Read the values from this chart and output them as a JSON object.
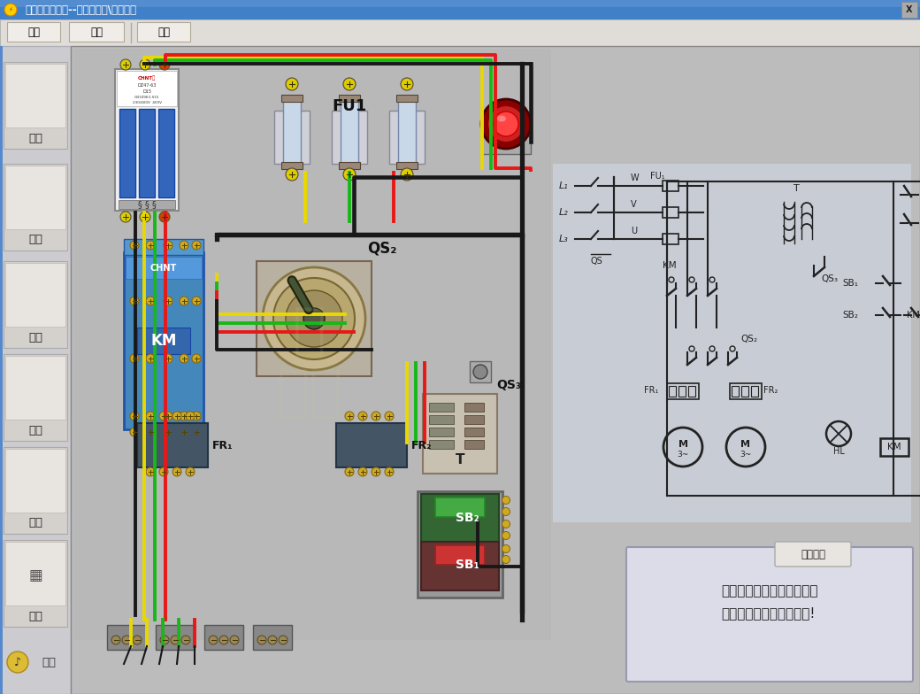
{
  "title": "电工技能与实训--电动机控制\\车床控制",
  "sidebar_items": [
    "器材",
    "电路",
    "原理",
    "布局",
    "运行",
    "排故"
  ],
  "music_label": "音乐",
  "toolbar_items": [
    "首页",
    "返回",
    "帮助"
  ],
  "hint_title": "操作提示",
  "hint_text": "将鼠标放到原理图中器件符\n号上查看器件名称和作用!",
  "bg_main": "#c8c8c8",
  "bg_sidebar": "#d0cece",
  "bg_content": "#bbbbbb",
  "title_bar_color": "#3a6fc4",
  "toolbar_color": "#e8e4e0",
  "wire_yellow": "#e8d800",
  "wire_green": "#18b818",
  "wire_red": "#e81818",
  "wire_black": "#181818",
  "schematic_bg": "#c8ccd8"
}
